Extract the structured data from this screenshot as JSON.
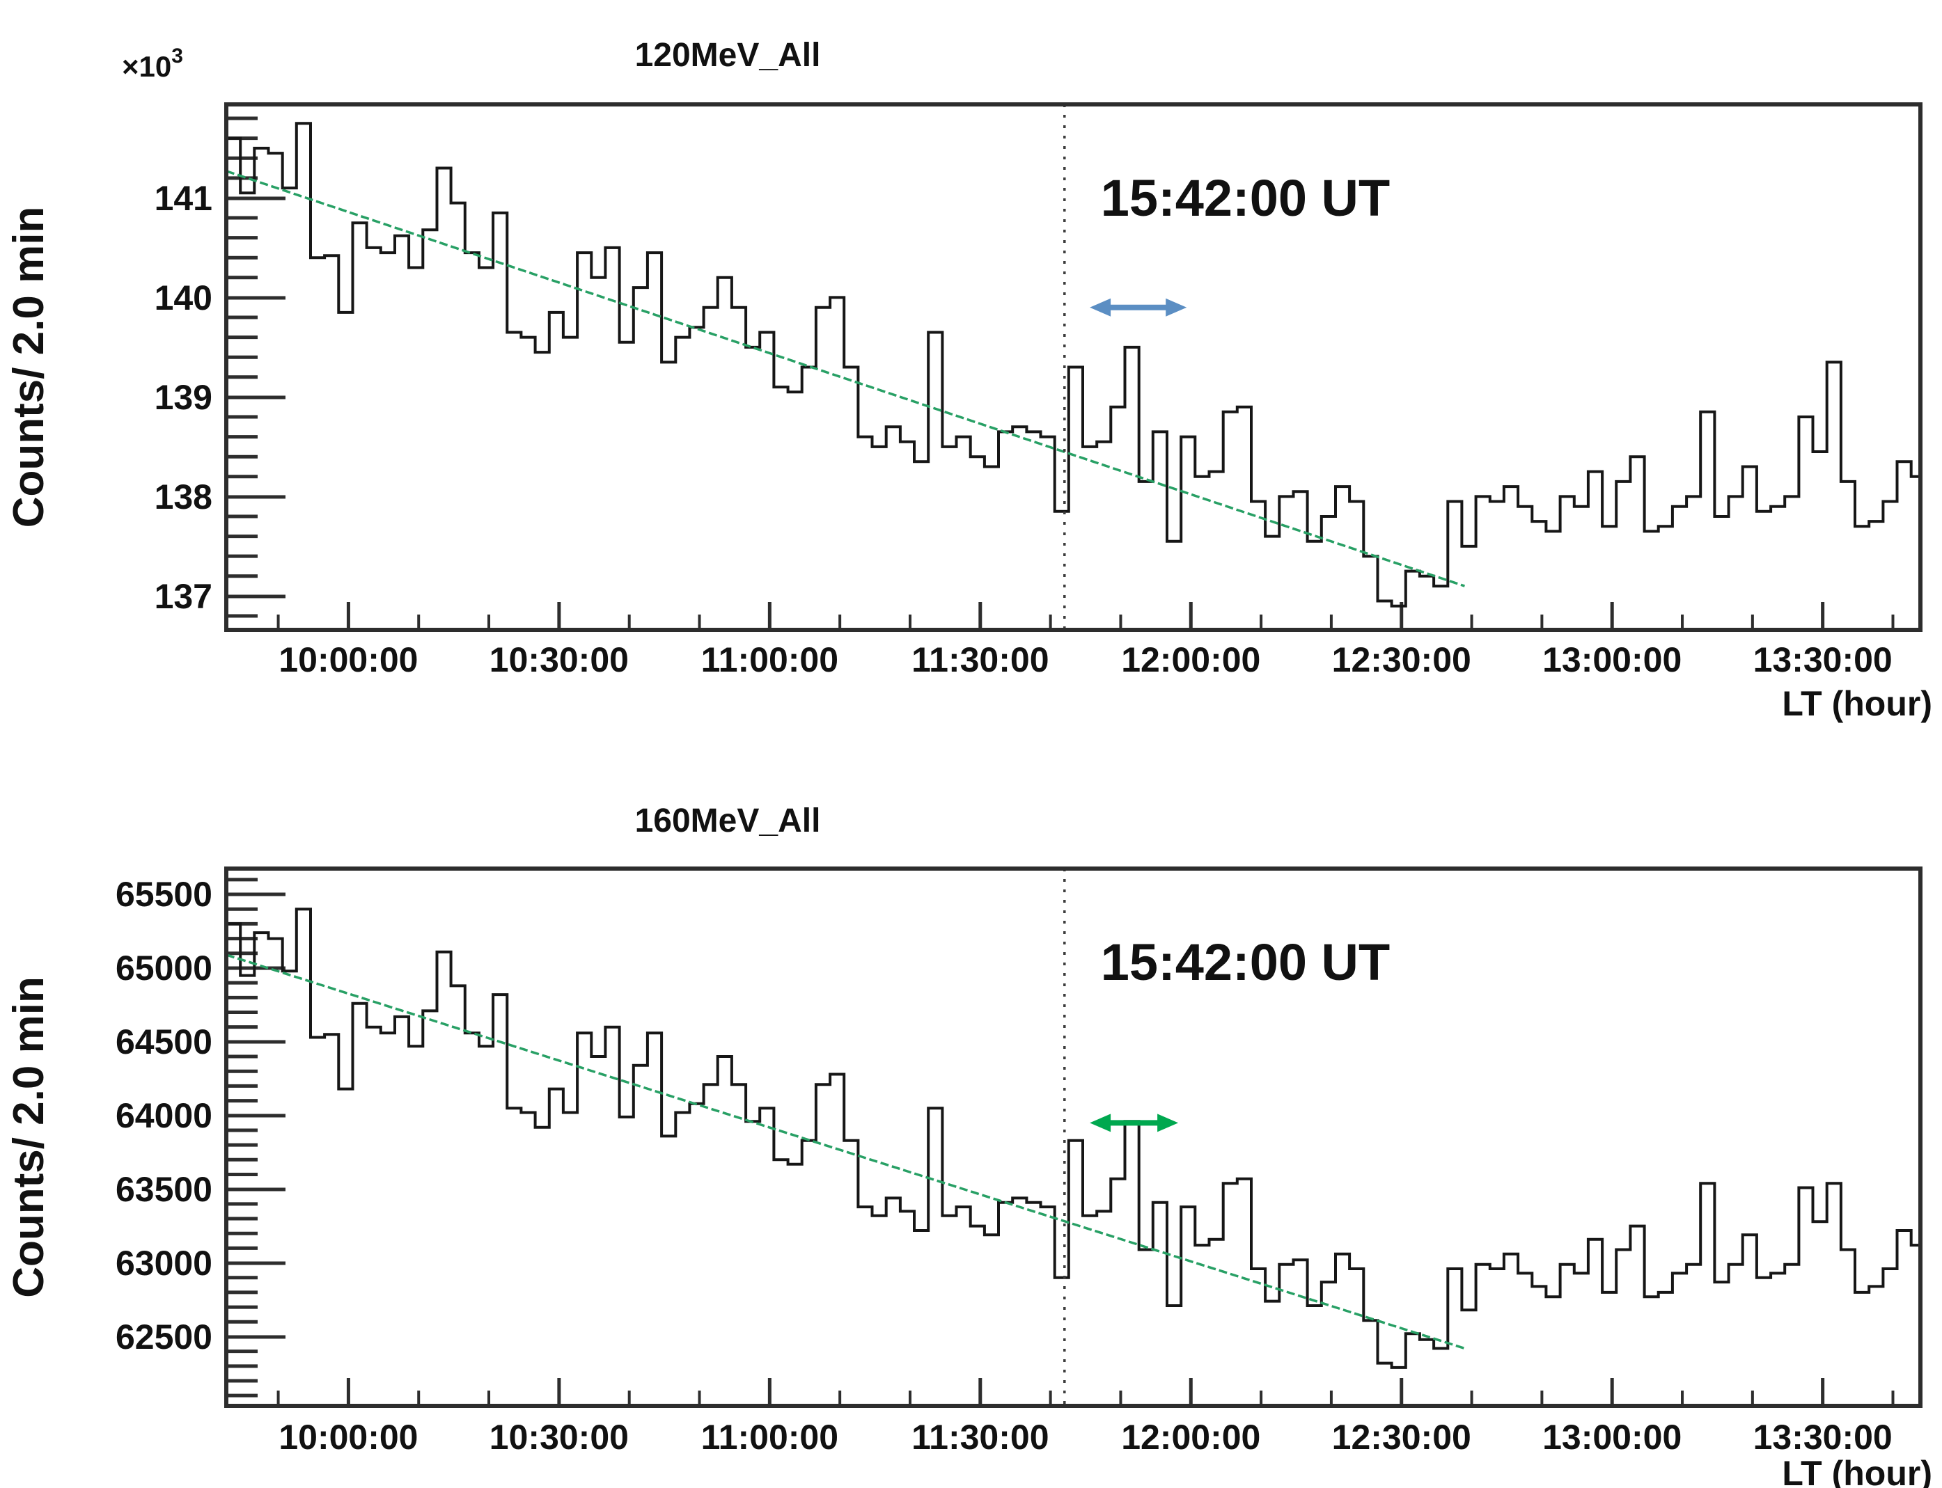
{
  "figure": {
    "background": "#ffffff",
    "frame_color": "#2d2d2d",
    "histogram_color": "#161616",
    "text_color": "#111111"
  },
  "chart_data": [
    {
      "type": "bar",
      "subtype": "histogram-step-timeseries",
      "title": "120MeV_All",
      "ylabel": "Counts/ 2.0 min",
      "xlabel": "LT (hour)",
      "y_exponent_base": "×10",
      "y_exponent_power": "3",
      "annotation": "15:42:00 UT",
      "bin_minutes": 2,
      "x_start_hour": 9.71,
      "xlim": [
        9.71,
        13.732
      ],
      "ylim": [
        136.66,
        141.94
      ],
      "x_ticks": [
        {
          "hour": 10.0,
          "label": "10:00:00"
        },
        {
          "hour": 10.5,
          "label": "10:30:00"
        },
        {
          "hour": 11.0,
          "label": "11:00:00"
        },
        {
          "hour": 11.5,
          "label": "11:30:00"
        },
        {
          "hour": 12.0,
          "label": "12:00:00"
        },
        {
          "hour": 12.5,
          "label": "12:30:00"
        },
        {
          "hour": 13.0,
          "label": "13:00:00"
        },
        {
          "hour": 13.5,
          "label": "13:30:00"
        }
      ],
      "x_minor_step_hour": 0.16667,
      "y_ticks": [
        {
          "value": 141,
          "label": "141"
        },
        {
          "value": 140,
          "label": "140"
        },
        {
          "value": 139,
          "label": "139"
        },
        {
          "value": 138,
          "label": "138"
        },
        {
          "value": 137,
          "label": "137"
        }
      ],
      "y_minor_step": 0.2,
      "values": [
        141.6,
        141.05,
        141.5,
        141.45,
        141.1,
        141.75,
        140.4,
        140.42,
        139.85,
        140.75,
        140.5,
        140.45,
        140.62,
        140.3,
        140.68,
        141.3,
        140.95,
        140.45,
        140.3,
        140.85,
        139.65,
        139.6,
        139.45,
        139.85,
        139.6,
        140.45,
        140.2,
        140.5,
        139.55,
        140.1,
        140.45,
        139.35,
        139.6,
        139.7,
        139.9,
        140.2,
        139.9,
        139.5,
        139.65,
        139.1,
        139.05,
        139.3,
        139.9,
        140.0,
        139.3,
        138.6,
        138.5,
        138.7,
        138.55,
        138.35,
        139.65,
        138.5,
        138.6,
        138.4,
        138.3,
        138.65,
        138.7,
        138.65,
        138.6,
        137.85,
        139.3,
        138.5,
        138.55,
        138.9,
        139.5,
        138.15,
        138.65,
        137.55,
        138.6,
        138.2,
        138.25,
        138.85,
        138.9,
        137.95,
        137.6,
        138.0,
        138.05,
        137.55,
        137.8,
        138.1,
        137.95,
        137.4,
        136.95,
        136.9,
        137.25,
        137.2,
        137.1,
        137.95,
        137.5,
        138.0,
        137.95,
        138.1,
        137.9,
        137.75,
        137.65,
        138.0,
        137.9,
        138.25,
        137.7,
        138.15,
        138.4,
        137.65,
        137.7,
        137.9,
        138.0,
        138.85,
        137.8,
        138.0,
        138.3,
        137.85,
        137.9,
        138.0,
        138.8,
        138.45,
        139.35,
        138.15,
        137.7,
        137.75,
        137.95,
        138.35,
        138.2
      ],
      "fit_line": {
        "x1": 9.71,
        "y1": 141.27,
        "x2": 12.65,
        "y2": 137.1,
        "color": "#28a065"
      },
      "event_line": {
        "x": 11.7,
        "color": "#3c3c3c"
      },
      "arrow": {
        "x1": 11.76,
        "x2": 11.99,
        "y": 139.9,
        "color": "#5b8ec3"
      }
    },
    {
      "type": "bar",
      "subtype": "histogram-step-timeseries",
      "title": "160MeV_All",
      "ylabel": "Counts/ 2.0 min",
      "xlabel": "LT (hour)",
      "y_exponent_base": "",
      "y_exponent_power": "",
      "annotation": "15:42:00 UT",
      "bin_minutes": 2,
      "x_start_hour": 9.71,
      "xlim": [
        9.71,
        13.732
      ],
      "ylim": [
        62030,
        65675
      ],
      "x_ticks": [
        {
          "hour": 10.0,
          "label": "10:00:00"
        },
        {
          "hour": 10.5,
          "label": "10:30:00"
        },
        {
          "hour": 11.0,
          "label": "11:00:00"
        },
        {
          "hour": 11.5,
          "label": "11:30:00"
        },
        {
          "hour": 12.0,
          "label": "12:00:00"
        },
        {
          "hour": 12.5,
          "label": "12:30:00"
        },
        {
          "hour": 13.0,
          "label": "13:00:00"
        },
        {
          "hour": 13.5,
          "label": "13:30:00"
        }
      ],
      "x_minor_step_hour": 0.16667,
      "y_ticks": [
        {
          "value": 65500,
          "label": "65500"
        },
        {
          "value": 65000,
          "label": "65000"
        },
        {
          "value": 64500,
          "label": "64500"
        },
        {
          "value": 64000,
          "label": "64000"
        },
        {
          "value": 63500,
          "label": "63500"
        },
        {
          "value": 63000,
          "label": "63000"
        },
        {
          "value": 62500,
          "label": "62500"
        }
      ],
      "y_minor_step": 100,
      "values": [
        65300,
        64950,
        65240,
        65200,
        64980,
        65400,
        64530,
        64550,
        64180,
        64760,
        64600,
        64560,
        64670,
        64470,
        64710,
        65110,
        64880,
        64560,
        64470,
        64820,
        64050,
        64020,
        63920,
        64180,
        64020,
        64560,
        64400,
        64600,
        63990,
        64340,
        64560,
        63860,
        64020,
        64080,
        64210,
        64400,
        64210,
        63960,
        64050,
        63700,
        63670,
        63830,
        64210,
        64280,
        63830,
        63380,
        63320,
        63440,
        63350,
        63220,
        64050,
        63320,
        63380,
        63250,
        63190,
        63410,
        63440,
        63410,
        63380,
        62900,
        63830,
        63320,
        63350,
        63570,
        63960,
        63090,
        63410,
        62710,
        63380,
        63120,
        63160,
        63540,
        63570,
        62960,
        62740,
        62990,
        63020,
        62710,
        62870,
        63060,
        62960,
        62610,
        62320,
        62290,
        62520,
        62480,
        62420,
        62960,
        62680,
        62990,
        62960,
        63060,
        62930,
        62840,
        62770,
        62990,
        62930,
        63160,
        62800,
        63090,
        63250,
        62770,
        62800,
        62930,
        62990,
        63540,
        62870,
        62990,
        63190,
        62900,
        62930,
        62990,
        63510,
        63280,
        63540,
        63090,
        62800,
        62840,
        62960,
        63220,
        63120
      ],
      "fit_line": {
        "x1": 9.71,
        "y1": 65090,
        "x2": 12.65,
        "y2": 62420,
        "color": "#28a065"
      },
      "event_line": {
        "x": 11.7,
        "color": "#3c3c3c"
      },
      "arrow": {
        "x1": 11.76,
        "x2": 11.97,
        "y": 63950,
        "color": "#00a84f"
      }
    }
  ]
}
